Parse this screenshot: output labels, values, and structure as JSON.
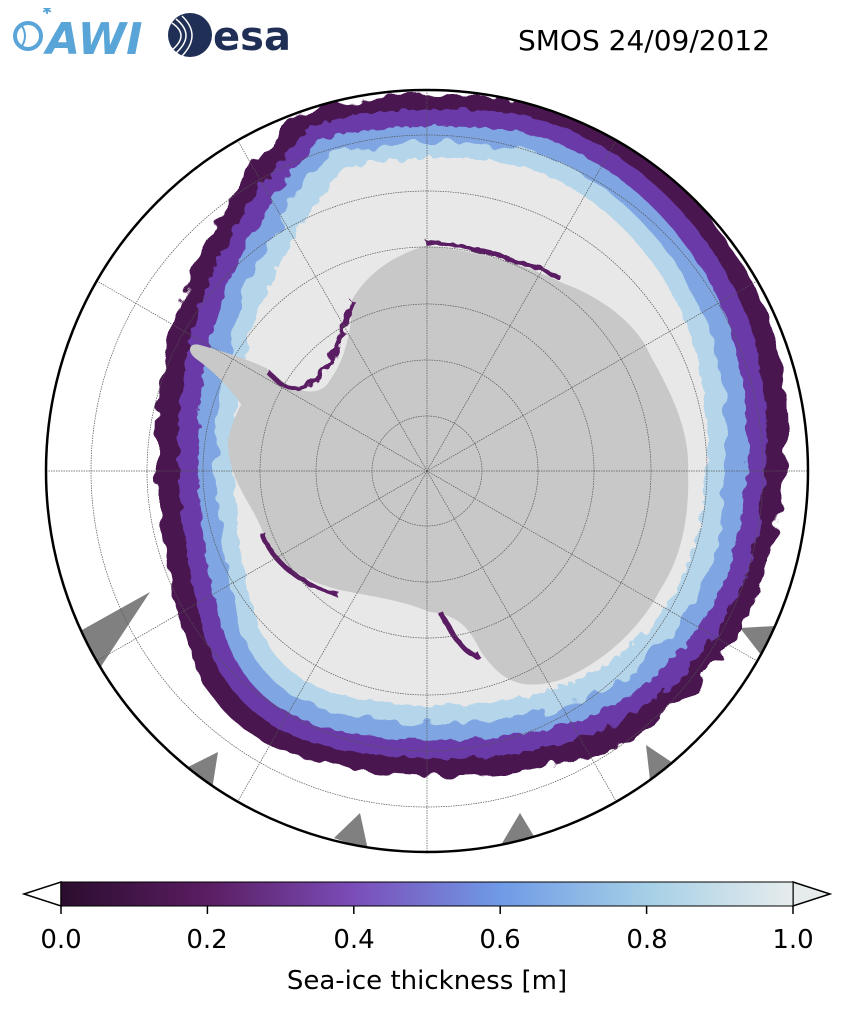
{
  "header": {
    "logo_awi": "AWI",
    "logo_esa": "esa",
    "title": "SMOS 24/09/2012"
  },
  "map": {
    "projection": "south-polar-stereographic",
    "graticule": true,
    "colors": {
      "land": "#c8c8c8",
      "thick_ice": "#e8e8e8",
      "ocean": "#ffffff",
      "missing": "#808080",
      "border": "#000000"
    }
  },
  "colorbar": {
    "label": "Sea-ice thickness [m]",
    "ticks": [
      "0.0",
      "0.2",
      "0.4",
      "0.6",
      "0.8",
      "1.0"
    ],
    "tick_values": [
      0.0,
      0.2,
      0.4,
      0.6,
      0.8,
      1.0
    ],
    "range": [
      0.0,
      1.0
    ],
    "extend": "both",
    "colormap": [
      "#2b0d2e",
      "#5a1d62",
      "#7b4db8",
      "#6f9ae6",
      "#a5cfe6",
      "#e6ecec"
    ]
  }
}
